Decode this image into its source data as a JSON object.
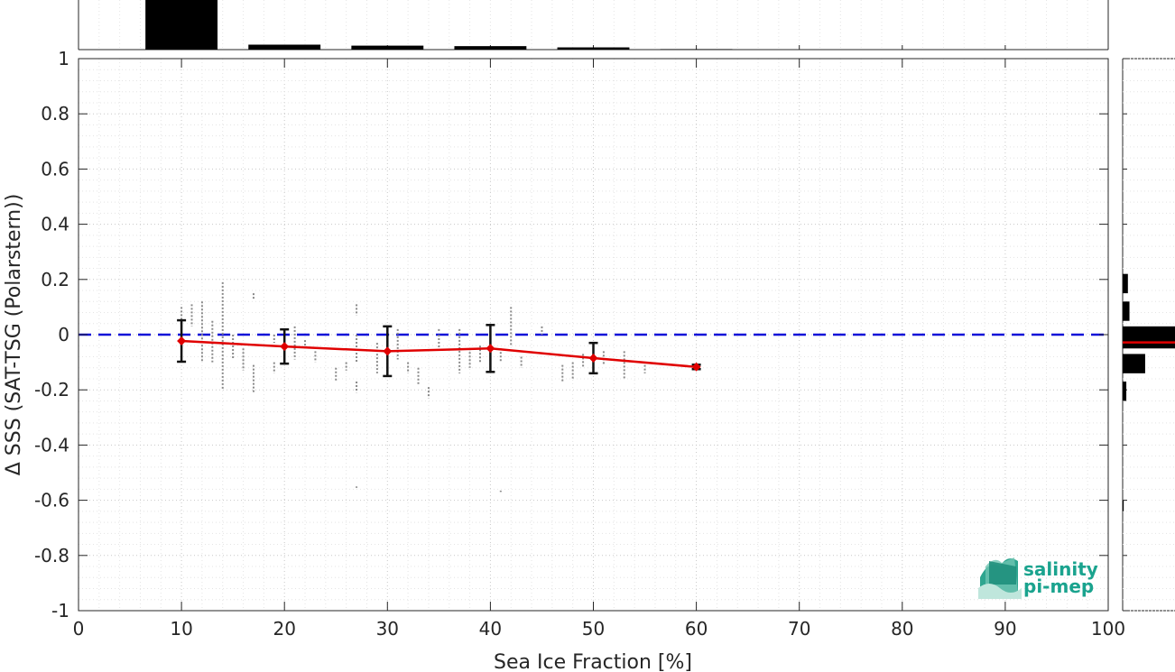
{
  "chart_data": {
    "type": "scatter",
    "xlabel": "Sea Ice Fraction [%]",
    "ylabel": "Δ SSS (SAT-TSG (Polarstern))",
    "xlim": [
      0,
      100
    ],
    "ylim": [
      -1,
      1
    ],
    "x_ticks": [
      "0",
      "10",
      "20",
      "30",
      "40",
      "50",
      "60",
      "70",
      "80",
      "90",
      "100"
    ],
    "y_ticks": [
      "1",
      "0.8",
      "0.6",
      "0.4",
      "0.2",
      "0",
      "-0.2",
      "-0.4",
      "-0.6",
      "-0.8",
      "-1"
    ],
    "grid": true,
    "reference_line": {
      "y": 0,
      "color": "#1010d8",
      "style": "dashed"
    },
    "mean_series": {
      "color": "#e00000",
      "x": [
        10,
        20,
        30,
        40,
        50,
        60
      ],
      "y": [
        -0.023,
        -0.043,
        -0.06,
        -0.05,
        -0.085,
        -0.117
      ],
      "err": [
        0.075,
        0.062,
        0.09,
        0.085,
        0.055,
        0.008
      ]
    },
    "raw_points": [
      {
        "x": 10,
        "y0": -0.06,
        "y1": 0.1
      },
      {
        "x": 11,
        "y0": 0.03,
        "y1": 0.11
      },
      {
        "x": 12,
        "y0": -0.1,
        "y1": 0.12
      },
      {
        "x": 13,
        "y0": -0.1,
        "y1": 0.05
      },
      {
        "x": 14,
        "y0": -0.2,
        "y1": 0.19
      },
      {
        "x": 15,
        "y0": -0.09,
        "y1": 0.0
      },
      {
        "x": 16,
        "y0": -0.13,
        "y1": -0.05
      },
      {
        "x": 17,
        "y0": -0.21,
        "y1": -0.11
      },
      {
        "x": 17,
        "y0": 0.13,
        "y1": 0.15
      },
      {
        "x": 19,
        "y0": -0.03,
        "y1": 0.0
      },
      {
        "x": 19,
        "y0": -0.14,
        "y1": -0.1
      },
      {
        "x": 20,
        "y0": -0.08,
        "y1": 0.01
      },
      {
        "x": 21,
        "y0": -0.09,
        "y1": 0.03
      },
      {
        "x": 22,
        "y0": -0.05,
        "y1": -0.02
      },
      {
        "x": 23,
        "y0": -0.1,
        "y1": -0.06
      },
      {
        "x": 25,
        "y0": -0.17,
        "y1": -0.12
      },
      {
        "x": 26,
        "y0": -0.13,
        "y1": -0.1
      },
      {
        "x": 27,
        "y0": -0.21,
        "y1": -0.17
      },
      {
        "x": 27,
        "y0": 0.07,
        "y1": 0.11
      },
      {
        "x": 27,
        "y0": -0.1,
        "y1": 0.0
      },
      {
        "x": 29,
        "y0": -0.14,
        "y1": -0.03
      },
      {
        "x": 30,
        "y0": -0.15,
        "y1": 0.03
      },
      {
        "x": 31,
        "y0": -0.09,
        "y1": 0.02
      },
      {
        "x": 32,
        "y0": -0.14,
        "y1": -0.1
      },
      {
        "x": 33,
        "y0": -0.18,
        "y1": -0.12
      },
      {
        "x": 34,
        "y0": -0.23,
        "y1": -0.19
      },
      {
        "x": 35,
        "y0": -0.05,
        "y1": 0.0
      },
      {
        "x": 35,
        "y0": 0.01,
        "y1": 0.02
      },
      {
        "x": 37,
        "y0": -0.14,
        "y1": 0.02
      },
      {
        "x": 38,
        "y0": -0.12,
        "y1": -0.05
      },
      {
        "x": 39,
        "y0": -0.1,
        "y1": -0.04
      },
      {
        "x": 40,
        "y0": -0.14,
        "y1": 0.04
      },
      {
        "x": 41,
        "y0": -0.1,
        "y1": -0.05
      },
      {
        "x": 42,
        "y0": -0.04,
        "y1": 0.1
      },
      {
        "x": 43,
        "y0": -0.12,
        "y1": -0.08
      },
      {
        "x": 45,
        "y0": 0.0,
        "y1": 0.03
      },
      {
        "x": 47,
        "y0": -0.17,
        "y1": -0.11
      },
      {
        "x": 48,
        "y0": -0.16,
        "y1": -0.1
      },
      {
        "x": 49,
        "y0": -0.12,
        "y1": -0.07
      },
      {
        "x": 51,
        "y0": -0.11,
        "y1": -0.06
      },
      {
        "x": 53,
        "y0": -0.16,
        "y1": -0.06
      },
      {
        "x": 55,
        "y0": -0.14,
        "y1": -0.11
      },
      {
        "x": 27,
        "y0": -0.555,
        "y1": -0.55
      },
      {
        "x": 41,
        "y0": -0.57,
        "y1": -0.565
      }
    ],
    "top_histogram": {
      "bins": [
        [
          6.5,
          13.5
        ],
        [
          16.5,
          23.5
        ],
        [
          26.5,
          33.5
        ],
        [
          36.5,
          43.5
        ],
        [
          46.5,
          53.5
        ],
        [
          56.5,
          63.5
        ]
      ],
      "heights": [
        1.0,
        0.1,
        0.08,
        0.07,
        0.045,
        0.01
      ]
    },
    "right_histogram": {
      "bins": [
        [
          0.15,
          0.22
        ],
        [
          0.05,
          0.12
        ],
        [
          -0.05,
          0.03
        ],
        [
          -0.14,
          -0.07
        ],
        [
          -0.24,
          -0.17
        ],
        [
          -0.64,
          -0.6
        ]
      ],
      "counts": [
        0.1,
        0.13,
        1.0,
        0.43,
        0.07,
        0.02
      ],
      "mean_line": {
        "y": -0.028,
        "color": "#e00000"
      }
    }
  },
  "logo": {
    "line1": "salinity",
    "line2": "pi-mep",
    "color": "#1aa38e"
  }
}
